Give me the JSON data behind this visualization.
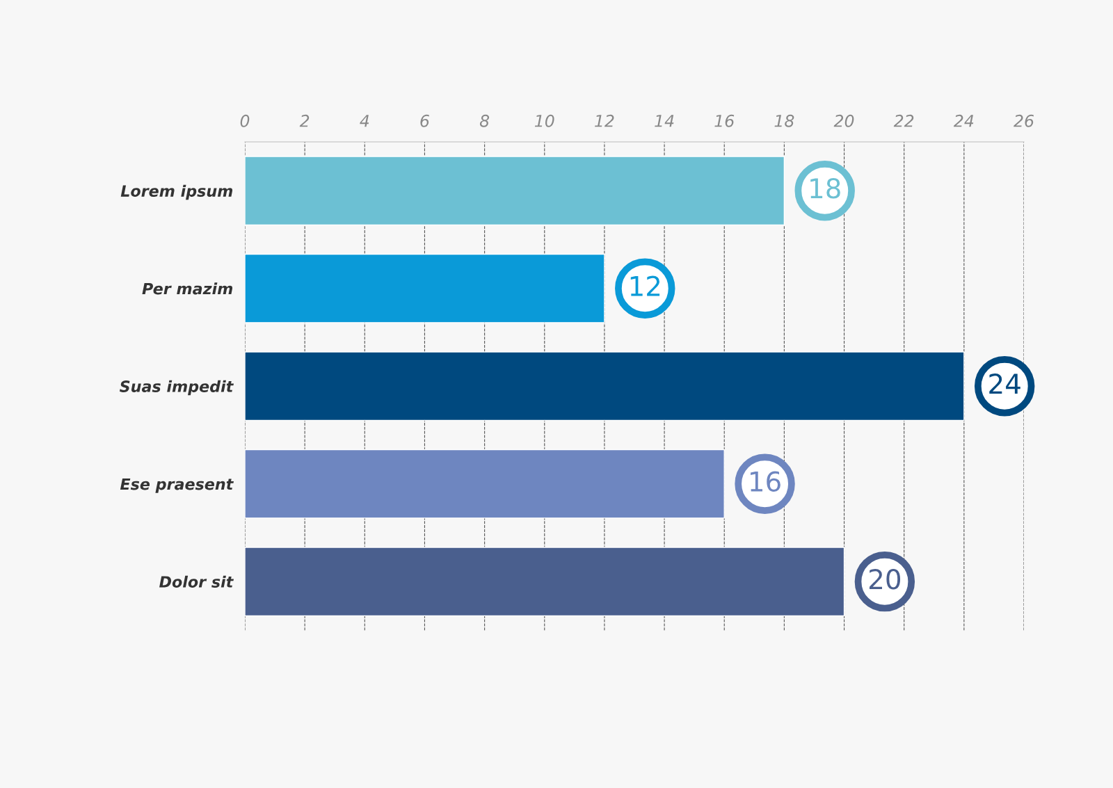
{
  "chart_data": {
    "type": "bar",
    "orientation": "horizontal",
    "categories": [
      "Lorem ipsum",
      "Per mazim",
      "Suas impedit",
      "Ese praesent",
      "Dolor sit"
    ],
    "values": [
      18,
      12,
      24,
      16,
      20
    ],
    "colors": [
      "#6cc0d3",
      "#0a9ad8",
      "#00497f",
      "#6e86c0",
      "#4a5f8e"
    ],
    "xlim": [
      0,
      26
    ],
    "xticks": [
      0,
      2,
      4,
      6,
      8,
      10,
      12,
      14,
      16,
      18,
      20,
      22,
      24,
      26
    ],
    "grid": "x",
    "data_labels": true
  }
}
